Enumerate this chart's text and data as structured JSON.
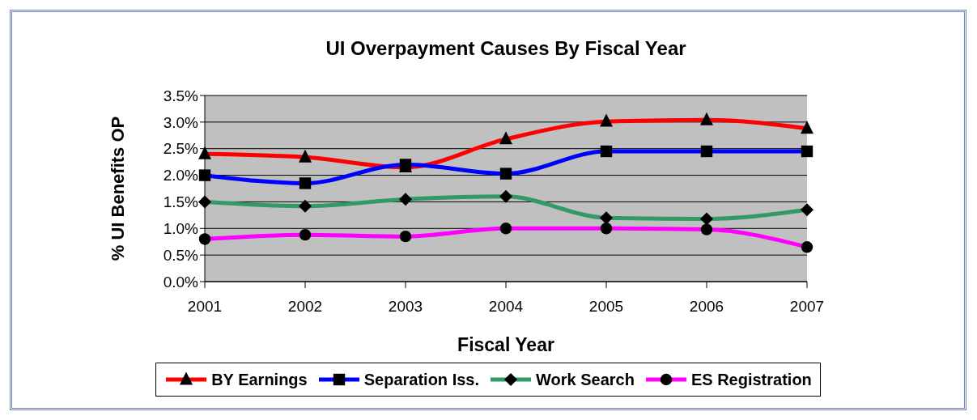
{
  "chart_data": {
    "type": "line",
    "title": "UI Overpayment Causes By Fiscal Year",
    "xlabel": "Fiscal Year",
    "ylabel": "% UI Benefits OP",
    "categories": [
      "2001",
      "2002",
      "2003",
      "2004",
      "2005",
      "2006",
      "2007"
    ],
    "series": [
      {
        "name": "BY Earnings",
        "color": "#ff0000",
        "marker": "triangle",
        "values": [
          2.4,
          2.34,
          2.15,
          2.68,
          3.01,
          3.04,
          2.88
        ]
      },
      {
        "name": "Separation Iss.",
        "color": "#0000ff",
        "marker": "square",
        "values": [
          2.0,
          1.85,
          2.2,
          2.03,
          2.45,
          2.45,
          2.45
        ]
      },
      {
        "name": "Work Search",
        "color": "#339966",
        "marker": "diamond",
        "values": [
          1.5,
          1.42,
          1.55,
          1.6,
          1.2,
          1.18,
          1.35
        ]
      },
      {
        "name": "ES Registration",
        "color": "#ff00ff",
        "marker": "circle",
        "values": [
          0.8,
          0.88,
          0.85,
          1.0,
          1.0,
          0.98,
          0.65
        ]
      }
    ],
    "ylim": [
      0,
      3.5
    ],
    "yticks": [
      {
        "value": 0,
        "label": "0.0%"
      },
      {
        "value": 0.5,
        "label": "0.5%"
      },
      {
        "value": 1,
        "label": "1.0%"
      },
      {
        "value": 1.5,
        "label": "1.5%"
      },
      {
        "value": 2,
        "label": "2.0%"
      },
      {
        "value": 2.5,
        "label": "2.5%"
      },
      {
        "value": 3,
        "label": "3.0%"
      },
      {
        "value": 3.5,
        "label": "3.5%"
      }
    ],
    "grid": "y",
    "legend": "bottom",
    "line_style": "solid"
  }
}
